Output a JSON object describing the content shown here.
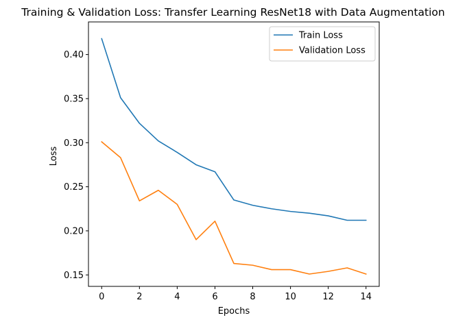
{
  "chart_data": {
    "type": "line",
    "title": "Training & Validation Loss: Transfer Learning ResNet18 with Data Augmentation",
    "xlabel": "Epochs",
    "ylabel": "Loss",
    "x": [
      0,
      1,
      2,
      3,
      4,
      5,
      6,
      7,
      8,
      9,
      10,
      11,
      12,
      13,
      14
    ],
    "xlim": [
      -0.7,
      14.7
    ],
    "ylim": [
      0.137,
      0.437
    ],
    "xticks": [
      0,
      2,
      4,
      6,
      8,
      10,
      12,
      14
    ],
    "yticks": [
      0.15,
      0.2,
      0.25,
      0.3,
      0.35,
      0.4
    ],
    "xtick_labels": [
      "0",
      "2",
      "4",
      "6",
      "8",
      "10",
      "12",
      "14"
    ],
    "ytick_labels": [
      "0.15",
      "0.20",
      "0.25",
      "0.30",
      "0.35",
      "0.40"
    ],
    "grid": false,
    "legend_position": "upper right",
    "series": [
      {
        "name": "Train Loss",
        "color": "#1f77b4",
        "values": [
          0.418,
          0.351,
          0.322,
          0.302,
          0.289,
          0.275,
          0.267,
          0.235,
          0.229,
          0.225,
          0.222,
          0.22,
          0.217,
          0.212,
          0.212
        ]
      },
      {
        "name": "Validation Loss",
        "color": "#ff7f0e",
        "values": [
          0.301,
          0.283,
          0.234,
          0.246,
          0.23,
          0.19,
          0.211,
          0.163,
          0.161,
          0.156,
          0.156,
          0.151,
          0.154,
          0.158,
          0.151
        ]
      }
    ]
  }
}
